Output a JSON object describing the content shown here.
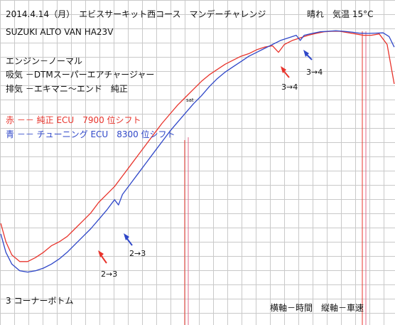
{
  "chart_data": {
    "type": "line",
    "title": "2014.4.14（月）　エビスサーキット西コース　マンデーチャレンジ",
    "weather": "晴れ　気温 15°C",
    "vehicle": "SUZUKI ALTO VAN  HA23V",
    "spec_lines": [
      "エンジン－ノーマル",
      "吸気 －DTMスーパーエアチャージャー",
      "排気 －エキマニ〜エンド　純正"
    ],
    "legend": [
      {
        "label": "赤 －－ 純正 ECU　7900 位シフト",
        "color": "#e8342c"
      },
      {
        "label": "青 －－ チューニング ECU　8300 位シフト",
        "color": "#2f47c8"
      }
    ],
    "annotations": {
      "corner": "3 コーナーボトム",
      "shift_low_blue": "2→3",
      "shift_low_red": "2→3",
      "shift_high_red": "3→4",
      "shift_high_blue": "3→4",
      "axes_note": "横軸－時間　縦軸－車速",
      "mark": "sat"
    },
    "grid": true,
    "xlim": [
      0,
      100
    ],
    "ylim": [
      0,
      100
    ],
    "series": [
      {
        "color": "#e8342c",
        "x": [
          0.2,
          1.5,
          3,
          5,
          7,
          9,
          11,
          13,
          15,
          17,
          19,
          21,
          23,
          25,
          27,
          29,
          31,
          33,
          35,
          37,
          39,
          41,
          43,
          45,
          47,
          49,
          51,
          53,
          55,
          57,
          59,
          61,
          63,
          65,
          67,
          69,
          70.5,
          72,
          74,
          76,
          78,
          80,
          82,
          84,
          86,
          88,
          90,
          92,
          94,
          96,
          98,
          99.8
        ],
        "y": [
          27,
          20,
          15,
          12.5,
          12.5,
          14,
          16,
          18.5,
          20,
          22,
          25,
          28,
          31,
          35,
          38,
          41,
          45,
          49,
          53,
          57,
          61,
          65,
          68.5,
          72,
          75,
          78,
          81,
          83.5,
          85.5,
          87.5,
          89,
          90.5,
          91.5,
          93,
          94,
          94.5,
          92,
          95,
          96.5,
          97.5,
          98.5,
          99.2,
          99.8,
          100,
          100,
          99.5,
          99,
          98.5,
          98.5,
          99,
          95,
          80
        ]
      },
      {
        "color": "#2f47c8",
        "x": [
          0.2,
          1.5,
          3,
          5,
          7,
          9,
          11,
          13,
          15,
          17,
          19,
          21,
          23,
          25,
          27,
          29,
          30,
          31,
          33,
          35,
          37,
          39,
          41,
          43,
          45,
          47,
          49,
          51,
          53,
          55,
          57,
          59,
          61,
          63,
          65,
          67,
          69,
          71,
          73,
          75,
          76,
          77,
          79,
          81,
          83,
          85,
          87,
          89,
          91,
          93,
          95,
          97,
          98.5,
          99.8
        ],
        "y": [
          23,
          16,
          11.5,
          9,
          8.5,
          9,
          10,
          11.5,
          13.5,
          16,
          19,
          22,
          25,
          28.5,
          32,
          36,
          34,
          38,
          42,
          46,
          50,
          54,
          58,
          62,
          65.5,
          69,
          72.5,
          75.5,
          79,
          82,
          84.5,
          86.5,
          88.5,
          90.5,
          92,
          93.5,
          95,
          96.5,
          97.5,
          98.5,
          96.5,
          98.5,
          99.2,
          99.8,
          100,
          100.2,
          100,
          99.7,
          99.3,
          99.2,
          99.3,
          99.4,
          98,
          94
        ]
      }
    ]
  }
}
